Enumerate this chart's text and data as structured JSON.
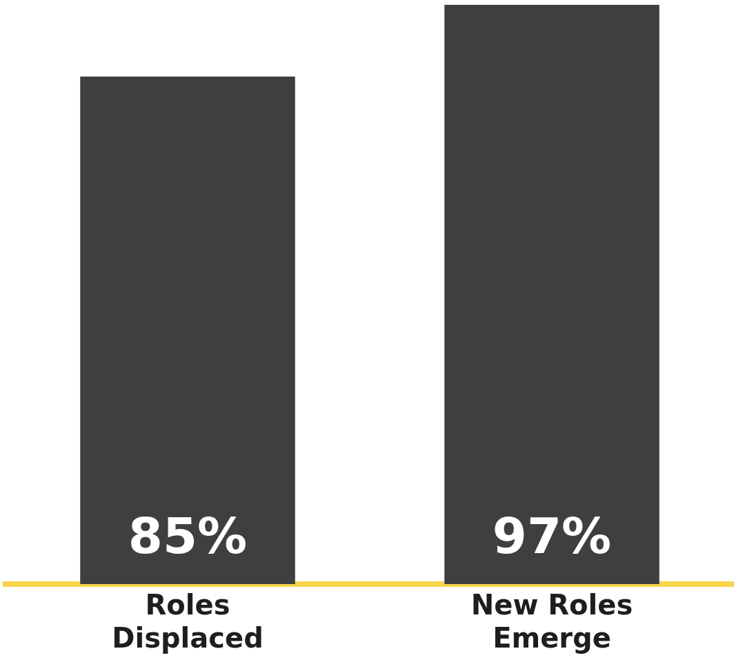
{
  "chart_data": {
    "type": "bar",
    "relative": false,
    "categories": [
      "Roles Displaced",
      "New Roles Emerge"
    ],
    "values": [
      85,
      97
    ],
    "value_labels": [
      "85%",
      "97%"
    ],
    "color": "#3f3e40",
    "grid": false,
    "legend": false
  }
}
